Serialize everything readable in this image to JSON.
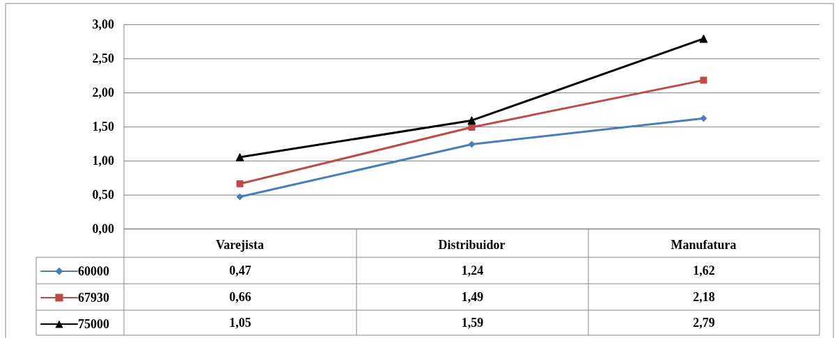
{
  "chart_data": {
    "type": "line",
    "categories": [
      "Varejista",
      "Distribuidor",
      "Manufatura"
    ],
    "series": [
      {
        "name": "60000",
        "color": "#4a7ebb",
        "marker": "diamond",
        "values": [
          0.47,
          1.24,
          1.62
        ],
        "value_labels": [
          "0,47",
          "1,24",
          "1,62"
        ]
      },
      {
        "name": "67930",
        "color": "#be4b48",
        "marker": "square",
        "values": [
          0.66,
          1.49,
          2.18
        ],
        "value_labels": [
          "0,66",
          "1,49",
          "2,18"
        ]
      },
      {
        "name": "75000",
        "color": "#000000",
        "marker": "triangle",
        "values": [
          1.05,
          1.59,
          2.79
        ],
        "value_labels": [
          "1,05",
          "1,59",
          "2,79"
        ]
      }
    ],
    "ylim": [
      0,
      3
    ],
    "yticks": [
      {
        "value": 0,
        "label": "0,00"
      },
      {
        "value": 0.5,
        "label": "0,50"
      },
      {
        "value": 1,
        "label": "1,00"
      },
      {
        "value": 1.5,
        "label": "1,50"
      },
      {
        "value": 2,
        "label": "2,00"
      },
      {
        "value": 2.5,
        "label": "2,50"
      },
      {
        "value": 3,
        "label": "3,00"
      }
    ],
    "grid": "y",
    "legend": "bottom left"
  }
}
